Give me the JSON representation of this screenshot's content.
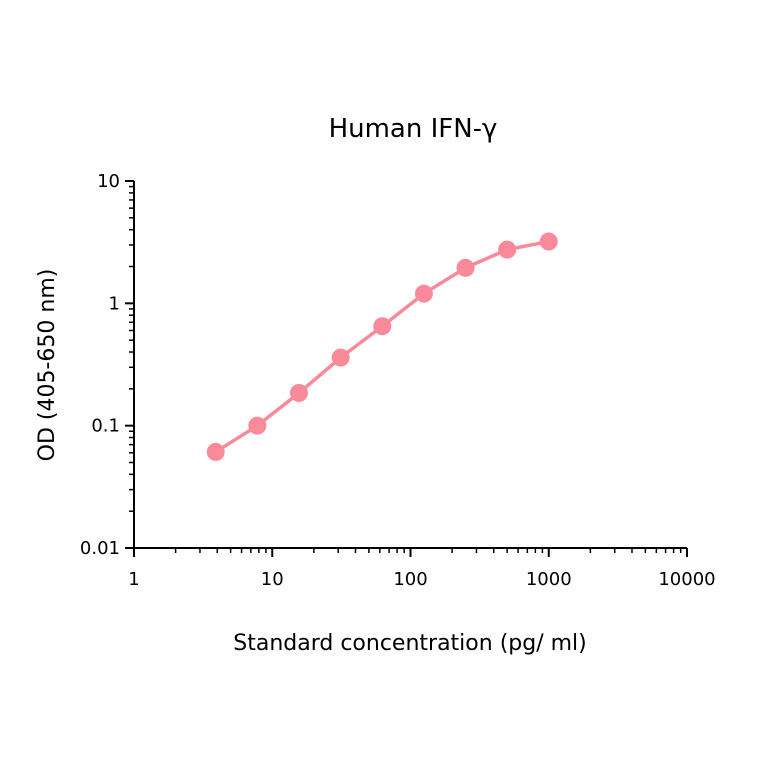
{
  "chart_data": {
    "type": "line",
    "title": "Human IFN-γ",
    "xlabel": "Standard concentration (pg/ ml)",
    "ylabel": "OD (405-650 nm)",
    "x_scale": "log",
    "y_scale": "log",
    "xlim": [
      1,
      10000
    ],
    "ylim": [
      0.01,
      10
    ],
    "x_ticks": [
      1,
      10,
      100,
      1000,
      10000
    ],
    "x_tick_labels": [
      "1",
      "10",
      "100",
      "1000",
      "10000"
    ],
    "y_ticks": [
      0.01,
      0.1,
      1,
      10
    ],
    "y_tick_labels": [
      "0.01",
      "0.1",
      "1",
      "10"
    ],
    "grid": false,
    "legend": "none",
    "series": [
      {
        "color": "#f98a9a",
        "x": [
          3.9,
          7.8,
          15.6,
          31.25,
          62.5,
          125,
          250,
          500,
          1000
        ],
        "y": [
          0.061,
          0.1,
          0.185,
          0.36,
          0.65,
          1.2,
          1.95,
          2.75,
          3.2
        ]
      }
    ]
  }
}
